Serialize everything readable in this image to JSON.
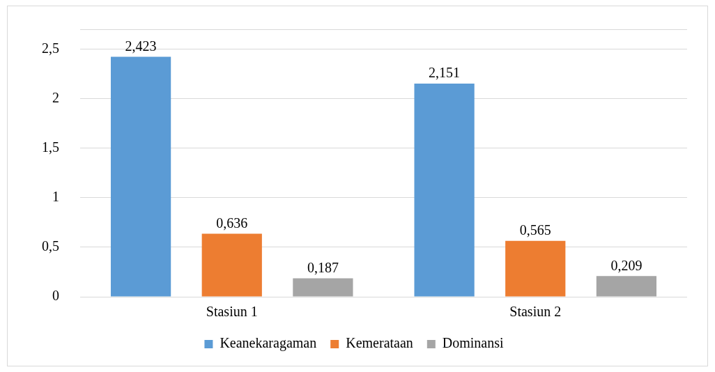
{
  "chart_data": {
    "type": "bar",
    "categories": [
      "Stasiun 1",
      "Stasiun 2"
    ],
    "series": [
      {
        "name": "Keanekaragaman",
        "color": "#5b9bd5",
        "values": [
          2.423,
          2.151
        ],
        "value_labels": [
          "2,423",
          "2,151"
        ]
      },
      {
        "name": "Kemerataan",
        "color": "#ed7d31",
        "values": [
          0.636,
          0.565
        ],
        "value_labels": [
          "0,636",
          "0,565"
        ]
      },
      {
        "name": "Dominansi",
        "color": "#a5a5a5",
        "values": [
          0.187,
          0.209
        ],
        "value_labels": [
          "0,187",
          "0,209"
        ]
      }
    ],
    "ylim": [
      0,
      2.7
    ],
    "yticks": [
      {
        "value": 0,
        "label": "0"
      },
      {
        "value": 0.5,
        "label": "0,5"
      },
      {
        "value": 1,
        "label": "1"
      },
      {
        "value": 1.5,
        "label": "1,5"
      },
      {
        "value": 2,
        "label": "2"
      },
      {
        "value": 2.5,
        "label": "2,5"
      },
      {
        "value": 2.7,
        "label": null
      }
    ],
    "grid": "y",
    "legend": "bottom"
  }
}
